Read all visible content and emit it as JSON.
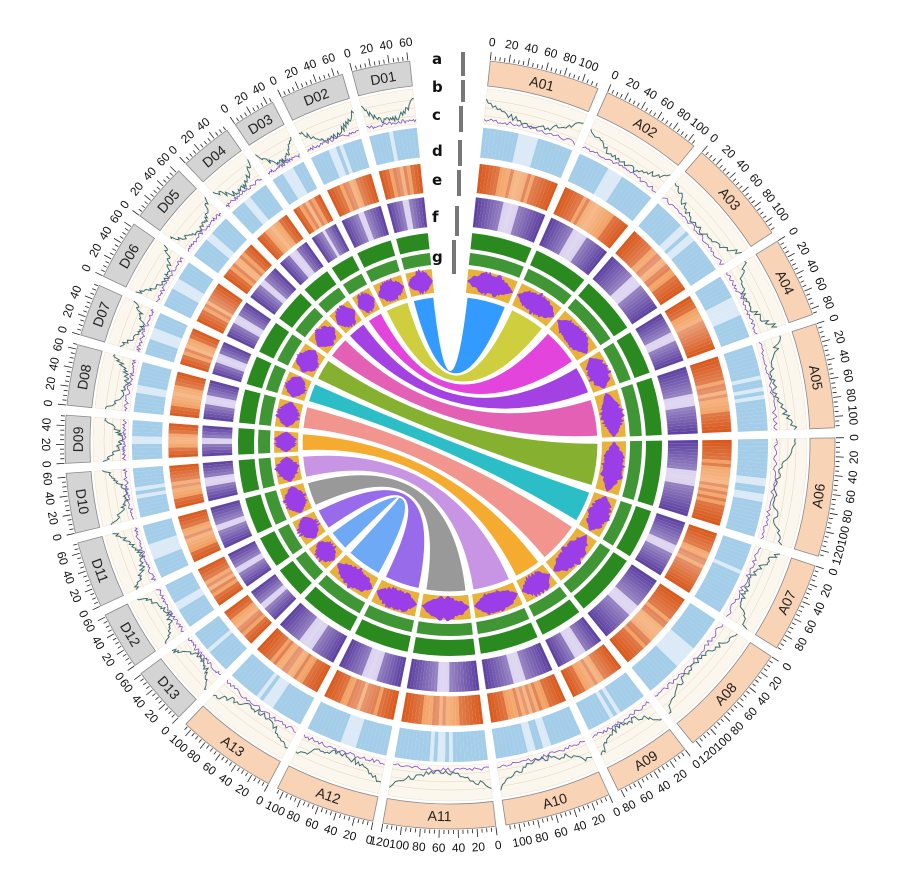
{
  "figure": {
    "track_labels": [
      "a",
      "b",
      "c",
      "d",
      "e",
      "f",
      "g"
    ],
    "colors": {
      "a_subgenome": "#f9d3b6",
      "d_subgenome": "#d4d4d4",
      "ideogram_stroke": "#888888",
      "line_track": "#3d6e74",
      "line_accent": "#7b52c7",
      "heat_c": "#a3cde8",
      "heat_c_light": "#dbeaf6",
      "heat_d": "#ef8a3c",
      "heat_d_dark": "#d8571a",
      "heat_e": "#5c3fa0",
      "heat_e_light": "#c6b8e6",
      "bar_f": "#2b8a1f",
      "hist_g_purple": "#9b3ee8",
      "hist_g_gold": "#e8b23a"
    },
    "chromosomes": [
      {
        "name": "A01",
        "group": "A",
        "length": 118,
        "ticks": [
          0,
          20,
          40,
          60,
          80,
          100
        ]
      },
      {
        "name": "A02",
        "group": "A",
        "length": 108,
        "ticks": [
          0,
          20,
          40,
          60,
          80,
          100
        ]
      },
      {
        "name": "A03",
        "group": "A",
        "length": 113,
        "ticks": [
          0,
          20,
          40,
          60,
          80,
          100
        ]
      },
      {
        "name": "A04",
        "group": "A",
        "length": 86,
        "ticks": [
          0,
          20,
          40,
          60,
          80
        ]
      },
      {
        "name": "A05",
        "group": "A",
        "length": 112,
        "ticks": [
          0,
          20,
          40,
          60,
          80,
          100
        ]
      },
      {
        "name": "A06",
        "group": "A",
        "length": 127,
        "ticks": [
          0,
          20,
          40,
          60,
          80,
          100,
          120
        ]
      },
      {
        "name": "A07",
        "group": "A",
        "length": 96,
        "ticks": [
          0,
          20,
          40,
          60,
          80
        ]
      },
      {
        "name": "A08",
        "group": "A",
        "length": 124,
        "ticks": [
          0,
          20,
          40,
          60,
          80,
          100,
          120
        ]
      },
      {
        "name": "A09",
        "group": "A",
        "length": 83,
        "ticks": [
          0,
          20,
          40,
          60,
          80
        ]
      },
      {
        "name": "A10",
        "group": "A",
        "length": 114,
        "ticks": [
          0,
          20,
          40,
          60,
          80,
          100
        ]
      },
      {
        "name": "A11",
        "group": "A",
        "length": 120,
        "ticks": [
          0,
          20,
          40,
          60,
          80,
          100,
          120
        ]
      },
      {
        "name": "A12",
        "group": "A",
        "length": 107,
        "ticks": [
          0,
          20,
          40,
          60,
          80,
          100
        ]
      },
      {
        "name": "A13",
        "group": "A",
        "length": 108,
        "ticks": [
          0,
          20,
          40,
          60,
          80,
          100
        ]
      },
      {
        "name": "D13",
        "group": "D",
        "length": 61,
        "ticks": [
          0,
          20,
          40,
          60
        ]
      },
      {
        "name": "D12",
        "group": "D",
        "length": 62,
        "ticks": [
          0,
          20,
          40,
          60
        ]
      },
      {
        "name": "D11",
        "group": "D",
        "length": 71,
        "ticks": [
          0,
          20,
          40,
          60
        ]
      },
      {
        "name": "D10",
        "group": "D",
        "length": 64,
        "ticks": [
          0,
          20,
          40,
          60
        ]
      },
      {
        "name": "D09",
        "group": "D",
        "length": 51,
        "ticks": [
          0,
          20,
          40
        ]
      },
      {
        "name": "D08",
        "group": "D",
        "length": 65,
        "ticks": [
          0,
          20,
          40,
          60
        ]
      },
      {
        "name": "D07",
        "group": "D",
        "length": 56,
        "ticks": [
          0,
          20,
          40
        ]
      },
      {
        "name": "D06",
        "group": "D",
        "length": 64,
        "ticks": [
          0,
          20,
          40,
          60
        ]
      },
      {
        "name": "D05",
        "group": "D",
        "length": 63,
        "ticks": [
          0,
          20,
          40,
          60
        ]
      },
      {
        "name": "D04",
        "group": "D",
        "length": 56,
        "ticks": [
          0,
          20,
          40
        ]
      },
      {
        "name": "D03",
        "group": "D",
        "length": 46,
        "ticks": [
          0,
          20,
          40
        ]
      },
      {
        "name": "D02",
        "group": "D",
        "length": 69,
        "ticks": [
          0,
          20,
          40,
          60
        ]
      },
      {
        "name": "D01",
        "group": "D",
        "length": 62,
        "ticks": [
          0,
          20,
          40,
          60
        ]
      }
    ],
    "links": [
      {
        "from": "A01",
        "to": "D01",
        "color": "#1e90ff"
      },
      {
        "from": "A02",
        "to": "D02",
        "color": "#c9c92a"
      },
      {
        "from": "A03",
        "to": "D03",
        "color": "#e030d8"
      },
      {
        "from": "A04",
        "to": "D04",
        "color": "#9b2de0"
      },
      {
        "from": "A05",
        "to": "D05",
        "color": "#e24fae"
      },
      {
        "from": "A06",
        "to": "D06",
        "color": "#7aa81a"
      },
      {
        "from": "A07",
        "to": "D07",
        "color": "#16b8c2"
      },
      {
        "from": "A08",
        "to": "D08",
        "color": "#f08a82"
      },
      {
        "from": "A09",
        "to": "D09",
        "color": "#f5a21a"
      },
      {
        "from": "A10",
        "to": "D10",
        "color": "#c28ae0"
      },
      {
        "from": "A11",
        "to": "D11",
        "color": "#8e8e8e"
      },
      {
        "from": "A12",
        "to": "D12",
        "color": "#8d5be8"
      },
      {
        "from": "A13",
        "to": "D13",
        "color": "#5fa0f5"
      }
    ]
  }
}
